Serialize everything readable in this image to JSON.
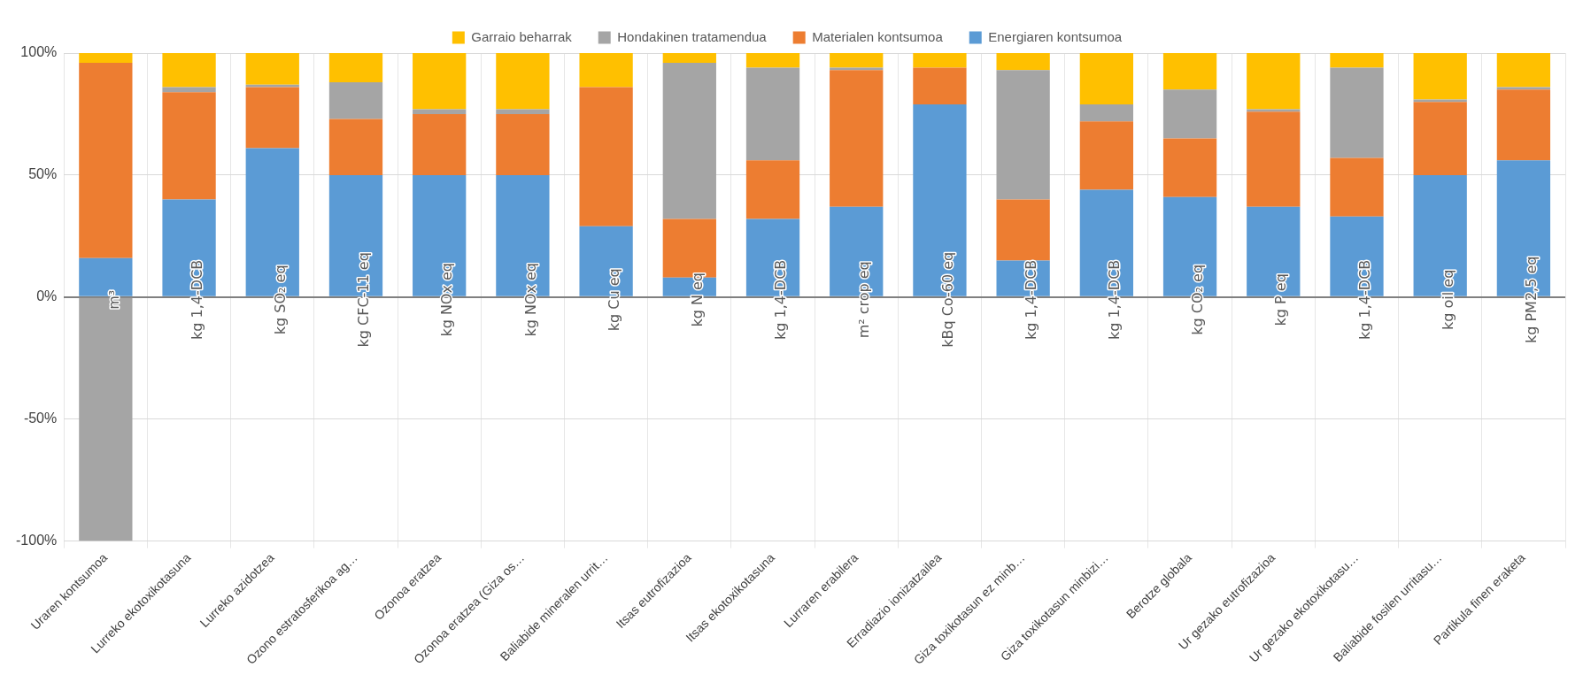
{
  "chart_data": {
    "type": "bar",
    "stacked": true,
    "legend": "top",
    "grid": true,
    "categories": [
      "Uraren kontsumoa",
      "Lurreko ekotoxikotasuna",
      "Lurreko azidotzea",
      "Ozono estratosferikoa ag…",
      "Ozonoa eratzea",
      "Ozonoa eratzea (Giza os…",
      "Baliabide mineralen urrit…",
      "Itsas eutrofizazioa",
      "Itsas ekotoxikotasuna",
      "Lurraren erabilera",
      "Erradiazio ionizatzailea",
      "Giza toxikotasun ez minb…",
      "Giza toxikotasun minbizi…",
      "Berotze globala",
      "Ur gezako eutrofizazioa",
      "Ur gezako ekotoxikotasu…",
      "Baliabide fosilen urritasu…",
      "Partikula finen eraketa"
    ],
    "series": [
      {
        "name": "Energiaren kontsumoa",
        "color": "#5b9bd5",
        "values": [
          16,
          40,
          61,
          50,
          50,
          50,
          29,
          8,
          32,
          37,
          79,
          15,
          44,
          41,
          37,
          33,
          50,
          56
        ]
      },
      {
        "name": "Materialen kontsumoa",
        "color": "#ed7d31",
        "values": [
          80,
          44,
          25,
          23,
          25,
          25,
          57,
          24,
          24,
          56,
          15,
          25,
          28,
          24,
          39,
          24,
          30,
          29
        ]
      },
      {
        "name": "Hondakinen tratamendua",
        "color": "#a5a5a5",
        "values": [
          -100,
          2,
          1,
          15,
          2,
          2,
          0,
          64,
          38,
          1,
          0,
          53,
          7,
          20,
          1,
          37,
          1,
          1
        ]
      },
      {
        "name": "Garraio beharrak",
        "color": "#ffc000",
        "values": [
          4,
          14,
          13,
          12,
          23,
          23,
          14,
          4,
          6,
          6,
          6,
          7,
          21,
          15,
          23,
          6,
          19,
          14
        ]
      }
    ],
    "ylim": [
      -100,
      100
    ],
    "yticks": [
      {
        "value": -100,
        "label": "-100%"
      },
      {
        "value": -50,
        "label": "-50%"
      },
      {
        "value": 0,
        "label": "0%"
      },
      {
        "value": 50,
        "label": "50%"
      },
      {
        "value": 100,
        "label": "100%"
      }
    ],
    "annotations": [
      {
        "text": "m³",
        "x": "Uraren kontsumoa",
        "y": 0
      },
      {
        "text": "kg 1,4-DCB",
        "x": "Lurreko ekotoxikotasuna",
        "y": 0
      },
      {
        "text": "kg SO₂ eq",
        "x": "Lurreko azidotzea",
        "y": 0
      },
      {
        "text": "kg CFC-11 eq",
        "x": "Ozono estratosferikoa ag…",
        "y": 0
      },
      {
        "text": "kg NOx eq",
        "x": "Ozonoa eratzea",
        "y": 0
      },
      {
        "text": "kg NOx eq",
        "x": "Ozonoa eratzea (Giza os…",
        "y": 0
      },
      {
        "text": "kg Cu eq",
        "x": "Baliabide mineralen urrit…",
        "y": 0
      },
      {
        "text": "kg N eq",
        "x": "Itsas eutrofizazioa",
        "y": 0
      },
      {
        "text": "kg 1,4-DCB",
        "x": "Itsas ekotoxikotasuna",
        "y": 0
      },
      {
        "text": "m² crop eq",
        "x": "Lurraren erabilera",
        "y": 0
      },
      {
        "text": "kBq Co-60 eq",
        "x": "Erradiazio ionizatzailea",
        "y": 0
      },
      {
        "text": "kg 1,4-DCB",
        "x": "Giza toxikotasun ez minb…",
        "y": 0
      },
      {
        "text": "kg 1,4-DCB",
        "x": "Giza toxikotasun minbizi…",
        "y": 0
      },
      {
        "text": "kg CO₂ eq",
        "x": "Berotze globala",
        "y": 0
      },
      {
        "text": "kg P eq",
        "x": "Ur gezako eutrofizazioa",
        "y": 0
      },
      {
        "text": "kg 1,4-DCB",
        "x": "Ur gezako ekotoxikotasu…",
        "y": 0
      },
      {
        "text": "kg oil eq",
        "x": "Baliabide fosilen urritasu…",
        "y": 0
      },
      {
        "text": "kg PM2,5 eq",
        "x": "Partikula finen eraketa",
        "y": 0
      }
    ]
  }
}
